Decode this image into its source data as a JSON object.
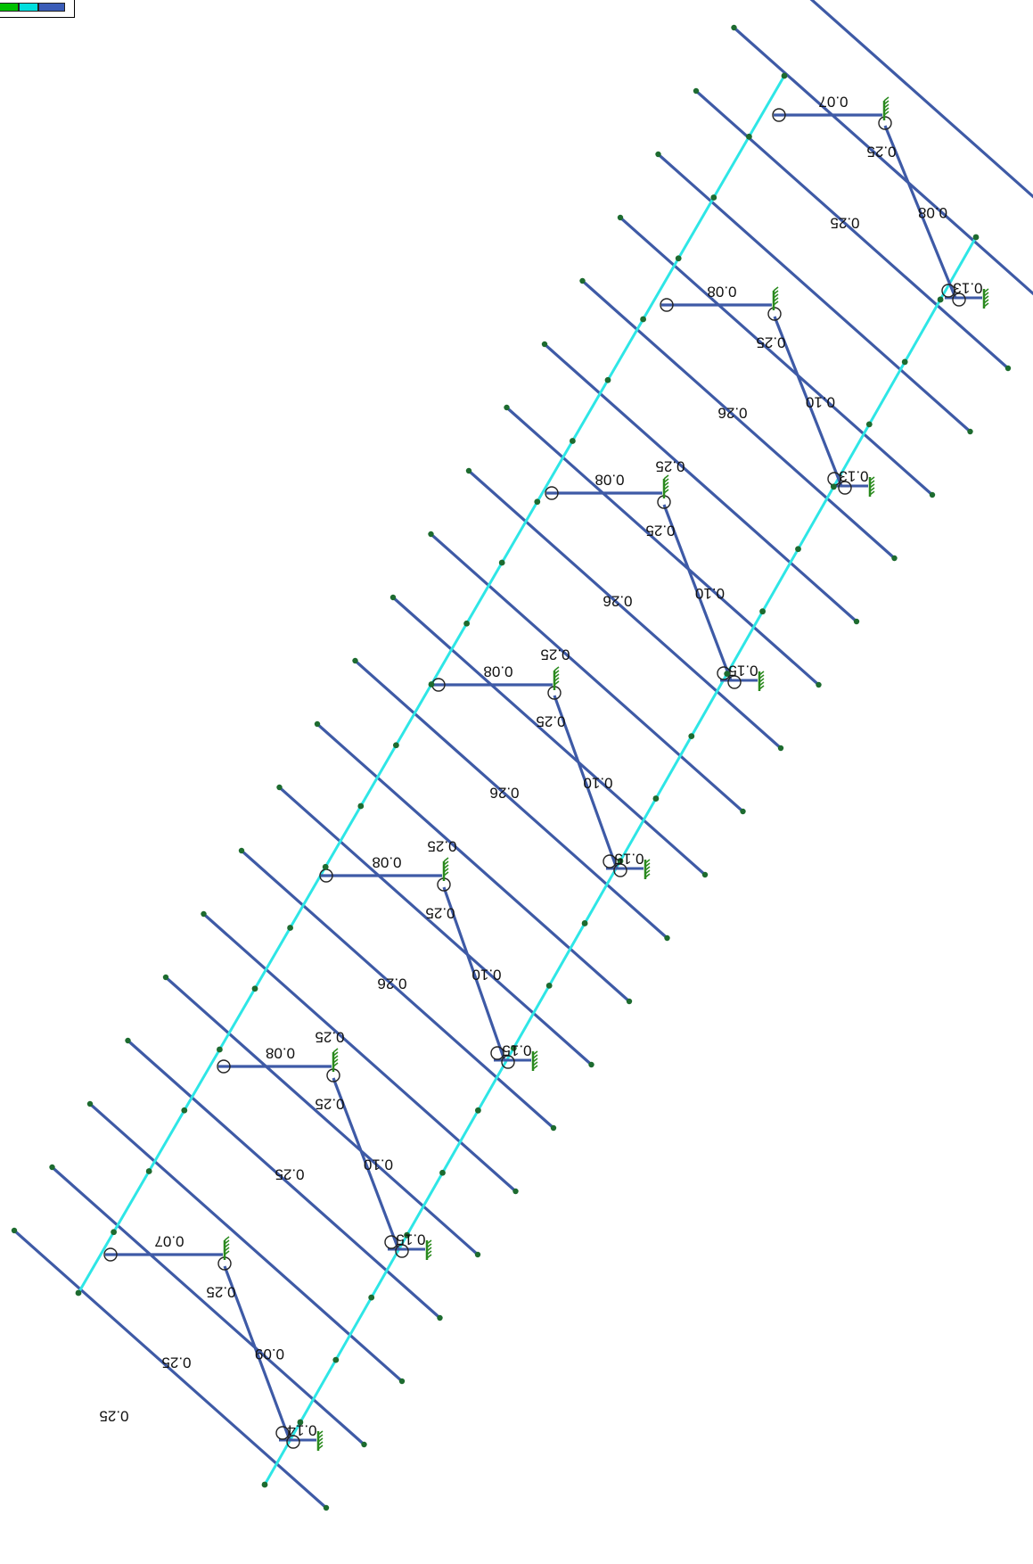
{
  "legend": {
    "colors": [
      "#00c000",
      "#00dede",
      "#3a5cb8"
    ]
  },
  "colors": {
    "beam": "#3e5aa6",
    "column": "#2ee6e6",
    "node": "#1d6b2f",
    "support": "#2a8a1e",
    "hinge": "#222222",
    "text": "#111111"
  },
  "labels": {
    "f1": {
      "top": "0.07",
      "diag1": "0.25",
      "diag2": "0.08",
      "bottom": "0.13",
      "beam": "0.25"
    },
    "f2": {
      "top": "0.08",
      "diag1": "0.25",
      "diag2": "0.10",
      "bottom": "0.13",
      "beam": "0.26",
      "beam2": "0.25"
    },
    "f3": {
      "top": "0.08",
      "diag1": "0.25",
      "diag2": "0.10",
      "bottom": "0.15",
      "beam": "0.26",
      "beam2": "0.25"
    },
    "f4": {
      "top": "0.08",
      "diag1": "0.25",
      "diag2": "0.10",
      "bottom": "0.15",
      "beam": "0.26",
      "beam2": "0.25"
    },
    "f5": {
      "top": "0.08",
      "diag1": "0.25",
      "diag2": "0.10",
      "bottom": "0.15",
      "beam": "0.26",
      "beam2": "0.25"
    },
    "f6": {
      "top": "0.08",
      "diag1": "0.25",
      "diag2": "0.10",
      "bottom": "0.15",
      "beam": "0.25"
    },
    "f7": {
      "top": "0.07",
      "diag1": "0.25",
      "diag2": "0.09",
      "bottom": "0.14",
      "beam": "0.25",
      "beam2": "0.25"
    }
  }
}
